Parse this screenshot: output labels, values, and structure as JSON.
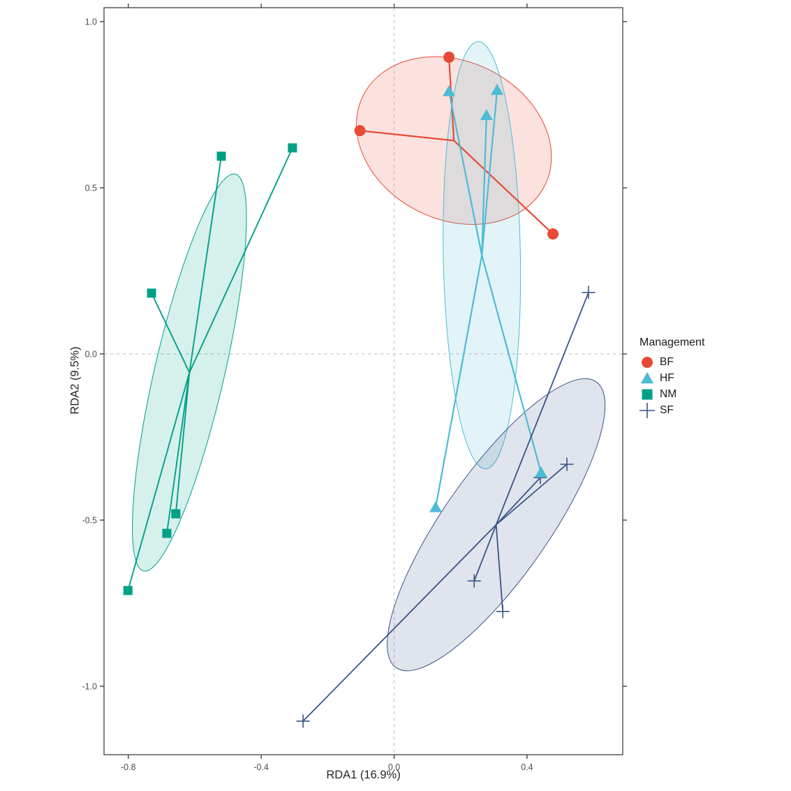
{
  "chart_data": {
    "type": "scatter",
    "subtype": "rda-ordination-spider-ellipse",
    "title": "",
    "xlabel": "RDA1 (16.9%)",
    "ylabel": "RDA2 (9.5%)",
    "xlim": [
      -0.873,
      0.688
    ],
    "ylim": [
      -1.206,
      1.042
    ],
    "xticks": [
      -0.8,
      -0.4,
      0.0,
      0.4
    ],
    "xtick_labels": [
      "-0.8",
      "-0.4",
      "0.0",
      "0.4"
    ],
    "yticks": [
      1.0,
      0.5,
      0.0,
      -0.5,
      -1.0
    ],
    "ytick_labels": [
      "1.0",
      "0.5",
      "0.0",
      "-0.5",
      "-1.0"
    ],
    "grid": false,
    "reference_lines": {
      "x": 0.0,
      "y": 0.0,
      "style": "dashed",
      "color": "#bebebe"
    },
    "panel_border_color": "#404040",
    "tick_color": "#333333",
    "tick_label_color": "#4d4d4d",
    "legend": {
      "title": "Management",
      "position": "right"
    },
    "series": [
      {
        "name": "BF",
        "marker": "circle",
        "color": "#E64B35",
        "fill_alpha": 0.16,
        "line_width": 2.2,
        "points": [
          [
            -0.103,
            0.672
          ],
          [
            0.165,
            0.893
          ],
          [
            0.478,
            0.361
          ]
        ],
        "centroid": [
          0.18,
          0.642
        ],
        "ellipse": {
          "cx": 0.18,
          "cy": 0.642,
          "rx": 0.305,
          "ry": 0.238,
          "rot": 26
        }
      },
      {
        "name": "HF",
        "marker": "triangle",
        "color": "#4DBBD5",
        "fill_alpha": 0.16,
        "line_width": 2.2,
        "points": [
          [
            0.165,
            0.79
          ],
          [
            0.31,
            0.794
          ],
          [
            0.278,
            0.718
          ],
          [
            0.442,
            -0.357
          ],
          [
            0.125,
            -0.462
          ]
        ],
        "centroid": [
          0.264,
          0.297
        ],
        "ellipse": {
          "cx": 0.264,
          "cy": 0.297,
          "rx": 0.116,
          "ry": 0.643,
          "rot": -1
        }
      },
      {
        "name": "NM",
        "marker": "square",
        "color": "#00A087",
        "fill_alpha": 0.16,
        "line_width": 1.9,
        "points": [
          [
            -0.52,
            0.595
          ],
          [
            -0.306,
            0.62
          ],
          [
            -0.73,
            0.183
          ],
          [
            -0.657,
            -0.481
          ],
          [
            -0.684,
            -0.54
          ],
          [
            -0.801,
            -0.712
          ]
        ],
        "centroid": [
          -0.616,
          -0.056
        ],
        "ellipse": {
          "cx": -0.616,
          "cy": -0.056,
          "rx": 0.105,
          "ry": 0.613,
          "rot": 13
        }
      },
      {
        "name": "SF",
        "marker": "plus",
        "color": "#3C5488",
        "fill_alpha": 0.16,
        "line_width": 1.8,
        "points": [
          [
            0.585,
            0.185
          ],
          [
            0.52,
            -0.332
          ],
          [
            0.44,
            -0.372
          ],
          [
            0.241,
            -0.683
          ],
          [
            0.327,
            -0.775
          ],
          [
            -0.274,
            -1.105
          ]
        ],
        "centroid": [
          0.307,
          -0.514
        ],
        "ellipse": {
          "cx": 0.307,
          "cy": -0.514,
          "rx": 0.158,
          "ry": 0.525,
          "rot": 35
        }
      }
    ]
  }
}
